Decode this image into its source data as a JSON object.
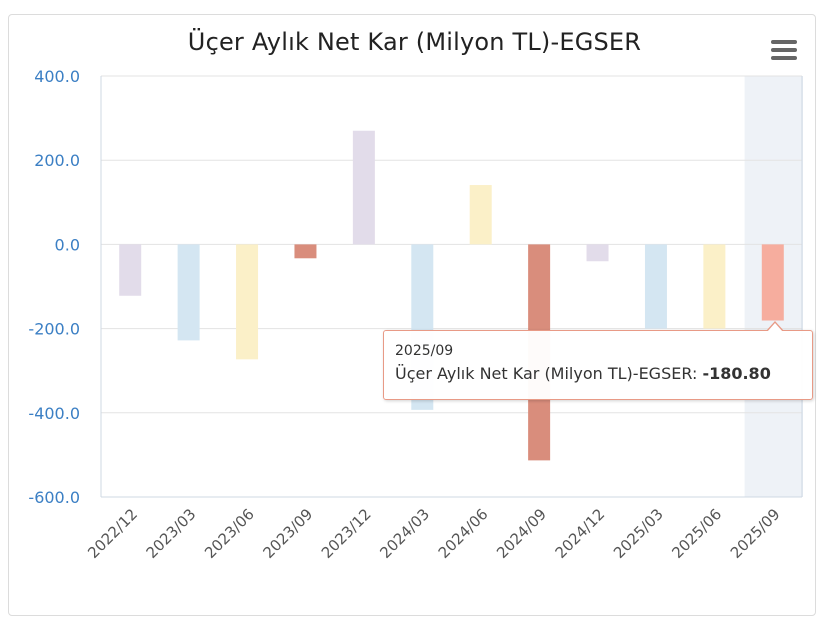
{
  "chart_data": {
    "type": "bar",
    "title": "Üçer Aylık Net Kar (Milyon TL)-EGSER",
    "xlabel": "",
    "ylabel": "",
    "ylim": [
      -600,
      400
    ],
    "yticks": [
      "400.0",
      "200.0",
      "0.0",
      "-200.0",
      "-400.0",
      "-600.0"
    ],
    "ytick_values": [
      400,
      200,
      0,
      -200,
      -400,
      -600
    ],
    "categories": [
      "2022/12",
      "2023/03",
      "2023/06",
      "2023/09",
      "2023/12",
      "2024/03",
      "2024/06",
      "2024/09",
      "2024/12",
      "2025/03",
      "2025/06",
      "2025/09"
    ],
    "values": [
      -122,
      -228,
      -273,
      -33,
      270,
      -393,
      141,
      -513,
      -40,
      -200,
      -200,
      -180.8
    ],
    "bar_colors": [
      "#e2dcea",
      "#d4e6f2",
      "#fbf0c8",
      "#d98d7c",
      "#e2dcea",
      "#d4e6f2",
      "#fbf0c8",
      "#d98d7c",
      "#e2dcea",
      "#d4e6f2",
      "#fbf0c8",
      "#f6ad9e"
    ],
    "highlight_index": 11,
    "grid": true,
    "legend": "none"
  },
  "tooltip": {
    "date": "2025/09",
    "series_label": "Üçer Aylık Net Kar (Milyon TL)-EGSER: ",
    "value": "-180.80"
  },
  "menu": {
    "icon": "hamburger-menu-icon"
  },
  "colors": {
    "axis_label": "#3b7fc4",
    "grid": "#e3e3e3",
    "highlight_band": "#eef2f7",
    "tooltip_border": "#e89a86"
  }
}
